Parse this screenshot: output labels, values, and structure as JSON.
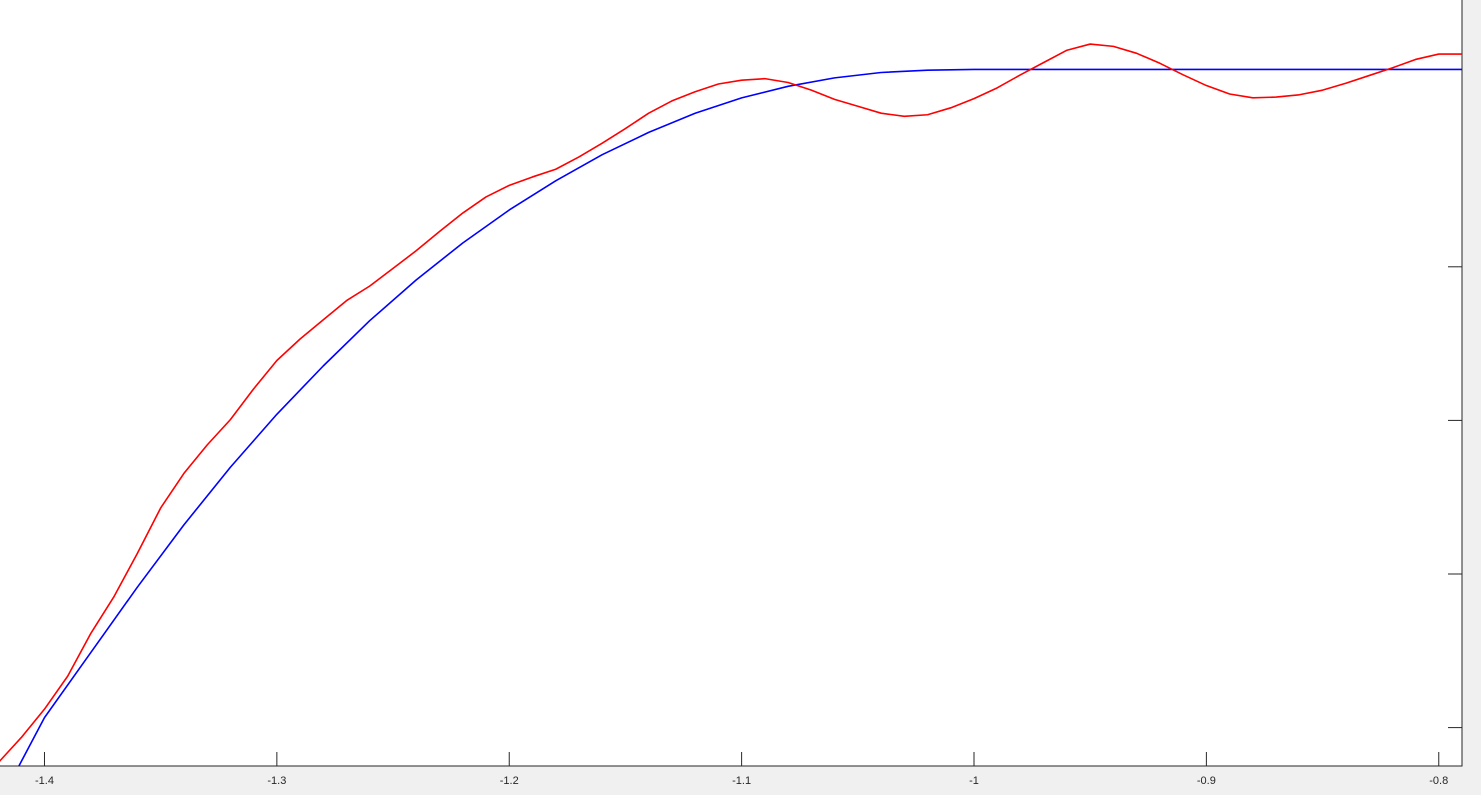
{
  "chart_data": {
    "type": "line",
    "title": "",
    "xlabel": "",
    "ylabel": "",
    "xlim": [
      -1.42,
      -0.79
    ],
    "ylim": [
      0,
      1
    ],
    "x_ticks": [
      -1.4,
      -1.3,
      -1.2,
      -1.1,
      -1.0,
      -0.9,
      -0.8
    ],
    "x_tick_labels": [
      "-1.4",
      "-1.3",
      "-1.2",
      "-1.1",
      "-1",
      "-0.9",
      "-0.8"
    ],
    "y_ticks": [
      0.05,
      0.25,
      0.45,
      0.65
    ],
    "grid": false,
    "legend": false,
    "series": [
      {
        "color": "#0000ff",
        "x": [
          -1.411,
          -1.4,
          -1.38,
          -1.36,
          -1.34,
          -1.32,
          -1.3,
          -1.28,
          -1.26,
          -1.24,
          -1.22,
          -1.2,
          -1.18,
          -1.16,
          -1.14,
          -1.12,
          -1.1,
          -1.08,
          -1.06,
          -1.04,
          -1.02,
          -1.0,
          -0.98,
          -0.95,
          -0.9,
          -0.85,
          -0.8,
          -0.79
        ],
        "y": [
          0.0,
          0.063,
          0.148,
          0.233,
          0.314,
          0.389,
          0.458,
          0.521,
          0.58,
          0.633,
          0.681,
          0.724,
          0.762,
          0.796,
          0.825,
          0.85,
          0.87,
          0.885,
          0.896,
          0.903,
          0.906,
          0.907,
          0.907,
          0.907,
          0.907,
          0.907,
          0.907,
          0.907
        ]
      },
      {
        "color": "#ff0000",
        "x": [
          -1.42,
          -1.41,
          -1.4,
          -1.39,
          -1.38,
          -1.37,
          -1.36,
          -1.35,
          -1.34,
          -1.33,
          -1.32,
          -1.31,
          -1.3,
          -1.29,
          -1.28,
          -1.27,
          -1.26,
          -1.25,
          -1.24,
          -1.23,
          -1.22,
          -1.21,
          -1.2,
          -1.19,
          -1.18,
          -1.17,
          -1.16,
          -1.15,
          -1.14,
          -1.13,
          -1.12,
          -1.11,
          -1.1,
          -1.09,
          -1.08,
          -1.07,
          -1.06,
          -1.05,
          -1.04,
          -1.03,
          -1.02,
          -1.01,
          -1.0,
          -0.99,
          -0.98,
          -0.97,
          -0.96,
          -0.95,
          -0.94,
          -0.93,
          -0.92,
          -0.91,
          -0.9,
          -0.89,
          -0.88,
          -0.87,
          -0.86,
          -0.85,
          -0.84,
          -0.83,
          -0.82,
          -0.81,
          -0.8,
          -0.79
        ],
        "y": [
          0.004,
          0.037,
          0.074,
          0.117,
          0.173,
          0.221,
          0.277,
          0.336,
          0.381,
          0.418,
          0.451,
          0.491,
          0.528,
          0.556,
          0.581,
          0.606,
          0.625,
          0.648,
          0.671,
          0.696,
          0.72,
          0.741,
          0.756,
          0.767,
          0.777,
          0.793,
          0.811,
          0.83,
          0.85,
          0.866,
          0.878,
          0.888,
          0.893,
          0.895,
          0.89,
          0.88,
          0.868,
          0.859,
          0.85,
          0.846,
          0.848,
          0.857,
          0.869,
          0.883,
          0.9,
          0.916,
          0.932,
          0.94,
          0.937,
          0.928,
          0.915,
          0.9,
          0.886,
          0.875,
          0.87,
          0.871,
          0.874,
          0.88,
          0.889,
          0.899,
          0.909,
          0.92,
          0.927,
          0.927
        ]
      }
    ]
  }
}
